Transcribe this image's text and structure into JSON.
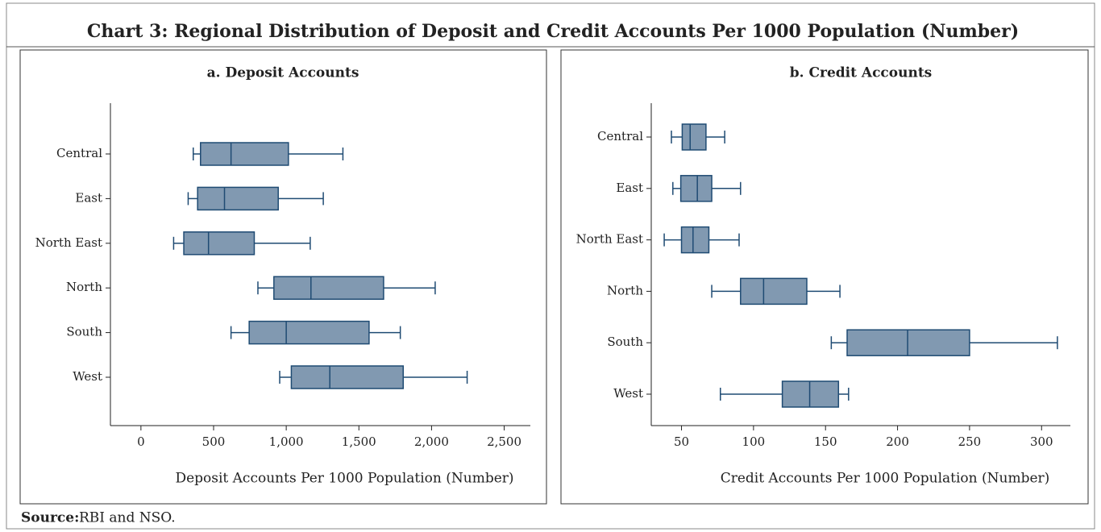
{
  "title": "Chart 3: Regional Distribution of Deposit and Credit Accounts Per 1000 Population (Number)",
  "source": {
    "label": "Source:",
    "text": "RBI and NSO."
  },
  "chart_data": [
    {
      "type": "box",
      "title": "a. Deposit Accounts",
      "xlabel": "Deposit Accounts Per 1000 Population (Number)",
      "color": "#8199b1",
      "line_color": "#1f4b73",
      "categories": [
        "Central",
        "East",
        "North East",
        "North",
        "South",
        "West"
      ],
      "boxes": [
        {
          "low": 360,
          "q1": 410,
          "median": 620,
          "q3": 1015,
          "high": 1390
        },
        {
          "low": 325,
          "q1": 390,
          "median": 575,
          "q3": 945,
          "high": 1255
        },
        {
          "low": 225,
          "q1": 295,
          "median": 465,
          "q3": 780,
          "high": 1165
        },
        {
          "low": 805,
          "q1": 915,
          "median": 1170,
          "q3": 1670,
          "high": 2025
        },
        {
          "low": 620,
          "q1": 745,
          "median": 1000,
          "q3": 1570,
          "high": 1785
        },
        {
          "low": 955,
          "q1": 1035,
          "median": 1300,
          "q3": 1805,
          "high": 2245
        }
      ],
      "xlim": [
        -210,
        2680
      ],
      "xticks": [
        0,
        500,
        {
          "value": 1000,
          "label": "1,000"
        },
        {
          "value": 1500,
          "label": "1,500"
        },
        {
          "value": 2000,
          "label": "2,000"
        },
        {
          "value": 2500,
          "label": "2,500"
        }
      ]
    },
    {
      "type": "box",
      "title": "b. Credit Accounts",
      "xlabel": "Credit Accounts Per 1000 Population (Number)",
      "color": "#8199b1",
      "line_color": "#1f4b73",
      "categories": [
        "Central",
        "East",
        "North East",
        "North",
        "South",
        "West"
      ],
      "boxes": [
        {
          "low": 43,
          "q1": 50.5,
          "median": 56,
          "q3": 67,
          "high": 80
        },
        {
          "low": 44,
          "q1": 49.5,
          "median": 61,
          "q3": 71,
          "high": 91
        },
        {
          "low": 38,
          "q1": 50,
          "median": 58,
          "q3": 69,
          "high": 90
        },
        {
          "low": 71,
          "q1": 91,
          "median": 107,
          "q3": 137,
          "high": 160
        },
        {
          "low": 154,
          "q1": 165,
          "median": 207,
          "q3": 250,
          "high": 311
        },
        {
          "low": 77,
          "q1": 120,
          "median": 139,
          "q3": 159,
          "high": 166
        }
      ],
      "xlim": [
        29,
        320
      ],
      "xticks": [
        50,
        100,
        150,
        200,
        250,
        300
      ]
    }
  ]
}
